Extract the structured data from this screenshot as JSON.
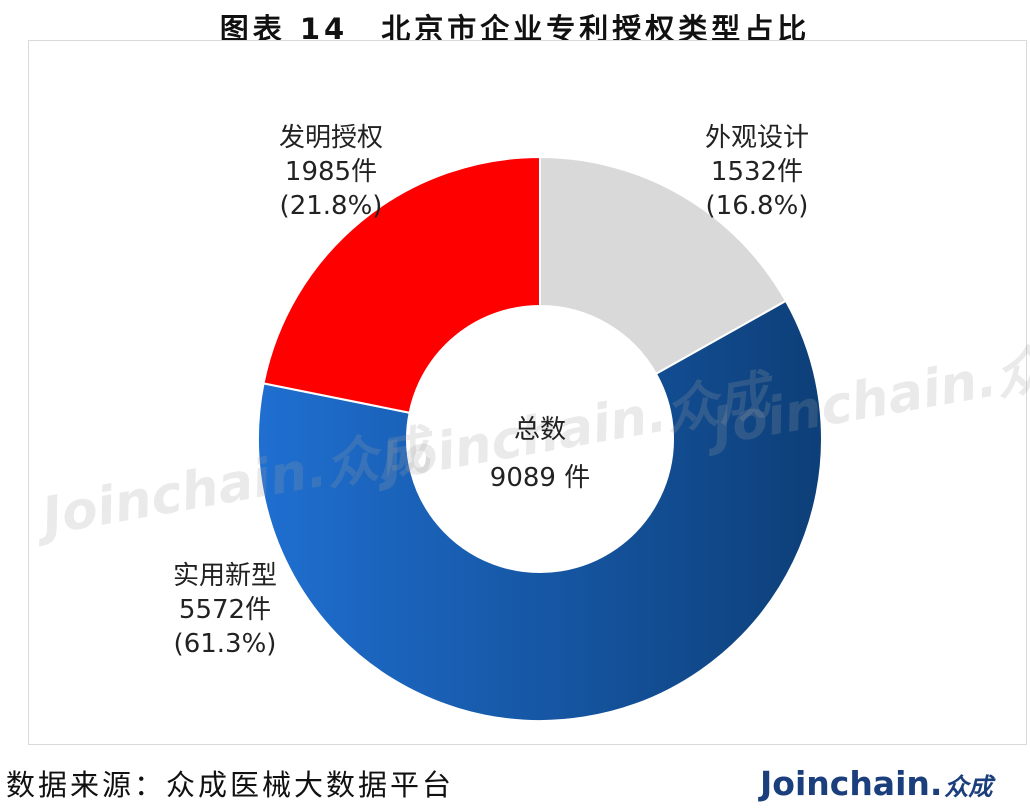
{
  "header": {
    "title": "图表 14　北京市企业专利授权类型占比"
  },
  "chart_data": {
    "type": "pie",
    "variant": "donut",
    "title": "图表 14　北京市企业专利授权类型占比",
    "center_label": "总数",
    "center_value": "9089 件",
    "slices": [
      {
        "name": "外观设计",
        "count_text": "1532件",
        "percent_text": "(16.8%)",
        "value": 1532,
        "percent": 16.8,
        "color": "#d9d9d9"
      },
      {
        "name": "实用新型",
        "count_text": "5572件",
        "percent_text": "(61.3%)",
        "value": 5572,
        "percent": 61.3,
        "color": "#1f6fd1",
        "gradient_dark": "#0d3f78"
      },
      {
        "name": "发明授权",
        "count_text": "1985件",
        "percent_text": "(21.8%)",
        "value": 1985,
        "percent": 21.8,
        "color": "#ff0000"
      }
    ],
    "start_angle_deg": 0,
    "direction": "clockwise"
  },
  "watermark": {
    "text": "Joinchain.众成"
  },
  "footer": {
    "source": "数据来源：众成医械大数据平台",
    "brand": "Joinchain.",
    "brand_cn": "众成",
    "brand_color": "#1b3f7c"
  }
}
